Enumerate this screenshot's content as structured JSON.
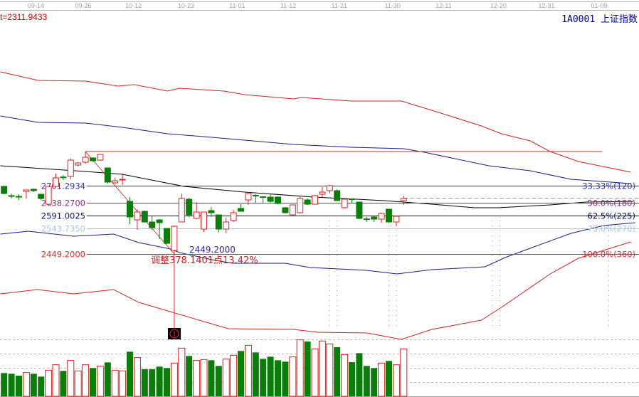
{
  "header": {
    "indicator_readout": "t=2311.9433",
    "symbol": "1A0001",
    "name": "上证指数"
  },
  "colors": {
    "up": "#d81e1e",
    "down": "#0a7d0a",
    "ma": "#000000",
    "band_outer": "#d42020",
    "band_inner": "#1a1a8c",
    "axis_text": "#a0a0a0"
  },
  "chart_data": {
    "type": "candlestick",
    "grid": false,
    "x_ticks": [
      {
        "label": "09-14",
        "index": 4.3
      },
      {
        "label": "09-26",
        "index": 10.7
      },
      {
        "label": "10-12",
        "index": 17.5
      },
      {
        "label": "10-23",
        "index": 24.6
      },
      {
        "label": "11-01",
        "index": 31.5
      },
      {
        "label": "11-12",
        "index": 38.4
      },
      {
        "label": "11-21",
        "index": 45.3
      },
      {
        "label": "11-30",
        "index": 52.5
      },
      {
        "label": "12-11",
        "index": 59.4
      },
      {
        "label": "12-20",
        "index": 66.8
      },
      {
        "label": "12-31",
        "index": 73.3
      },
      {
        "label": "01-09",
        "index": 80.4
      }
    ],
    "ohlc_columns": [
      "open",
      "high",
      "low",
      "close"
    ],
    "ohlc": [
      [
        2698.7,
        2701.3,
        2669.8,
        2672.4
      ],
      [
        2664.5,
        2672.4,
        2654.0,
        2663.0
      ],
      [
        2661.9,
        2669.8,
        2648.8,
        2660.5
      ],
      [
        2680.3,
        2685.5,
        2654.0,
        2685.5
      ],
      [
        2688.2,
        2690.8,
        2677.7,
        2682.9
      ],
      [
        2669.8,
        2669.8,
        2648.8,
        2654.0
      ],
      [
        2633.0,
        2701.3,
        2630.4,
        2698.7
      ],
      [
        2698.7,
        2745.9,
        2696.0,
        2730.2
      ],
      [
        2733.5,
        2740.7,
        2722.3,
        2732.8
      ],
      [
        2735.4,
        2801.1,
        2724.9,
        2795.8
      ],
      [
        2777.5,
        2788.0,
        2772.0,
        2785.3
      ],
      [
        2788.0,
        2827.3,
        2782.7,
        2806.3
      ],
      [
        2803.7,
        2806.3,
        2790.6,
        2793.2
      ],
      [
        2795.8,
        2816.8,
        2793.2,
        2816.8
      ],
      [
        2766.9,
        2766.9,
        2709.2,
        2714.4
      ],
      [
        2711.8,
        2730.2,
        2709.2,
        2719.7
      ],
      [
        2723.5,
        2745.9,
        2703.9,
        2724.9
      ],
      [
        2643.5,
        2659.3,
        2559.5,
        2585.8
      ],
      [
        2575.2,
        2614.6,
        2538.5,
        2604.1
      ],
      [
        2606.8,
        2609.4,
        2564.7,
        2567.4
      ],
      [
        2567.4,
        2591.0,
        2538.5,
        2546.4
      ],
      [
        2575.2,
        2577.9,
        2504.3,
        2564.7
      ],
      [
        2543.7,
        2543.7,
        2486.0,
        2488.6
      ],
      [
        2462.3,
        2554.2,
        2449.2,
        2551.6
      ],
      [
        2567.4,
        2672.4,
        2567.4,
        2654.0
      ],
      [
        2651.4,
        2656.7,
        2585.8,
        2593.6
      ],
      [
        2580.5,
        2640.9,
        2577.9,
        2604.1
      ],
      [
        2541.1,
        2604.1,
        2530.6,
        2604.1
      ],
      [
        2609.4,
        2622.5,
        2585.8,
        2601.5
      ],
      [
        2593.6,
        2593.6,
        2528.0,
        2541.1
      ],
      [
        2541.1,
        2583.1,
        2525.4,
        2567.4
      ],
      [
        2572.6,
        2612.0,
        2567.4,
        2601.5
      ],
      [
        2617.3,
        2633.0,
        2606.8,
        2606.8
      ],
      [
        2648.8,
        2672.4,
        2630.4,
        2672.4
      ],
      [
        2665.8,
        2669.8,
        2638.3,
        2664.5
      ],
      [
        2660.6,
        2661.9,
        2638.3,
        2659.3
      ],
      [
        2659.3,
        2669.8,
        2638.3,
        2643.5
      ],
      [
        2659.3,
        2661.9,
        2633.0,
        2635.6
      ],
      [
        2619.9,
        2622.5,
        2598.9,
        2601.5
      ],
      [
        2593.6,
        2630.4,
        2591.0,
        2630.4
      ],
      [
        2601.5,
        2664.5,
        2598.9,
        2654.0
      ],
      [
        2648.8,
        2654.0,
        2630.4,
        2633.0
      ],
      [
        2633.0,
        2667.2,
        2633.0,
        2664.5
      ],
      [
        2669.8,
        2696.0,
        2659.3,
        2677.7
      ],
      [
        2682.9,
        2703.9,
        2672.4,
        2701.3
      ],
      [
        2682.9,
        2688.2,
        2646.2,
        2646.2
      ],
      [
        2619.9,
        2651.4,
        2617.3,
        2651.4
      ],
      [
        2652.7,
        2654.0,
        2635.6,
        2651.4
      ],
      [
        2640.9,
        2640.9,
        2577.9,
        2580.5
      ],
      [
        2578.9,
        2585.8,
        2567.4,
        2577.9
      ],
      [
        2585.8,
        2591.0,
        2567.4,
        2577.9
      ],
      [
        2577.9,
        2601.5,
        2564.7,
        2598.9
      ],
      [
        2614.6,
        2614.6,
        2564.7,
        2567.4
      ],
      [
        2567.4,
        2588.4,
        2551.6,
        2588.4
      ],
      [
        2646.2,
        2664.5,
        2630.4,
        2654.0
      ]
    ],
    "volume_relative": [
      98,
      95,
      87,
      100,
      95,
      83,
      110,
      133,
      107,
      151,
      107,
      133,
      119,
      127,
      143,
      110,
      107,
      188,
      163,
      114,
      114,
      125,
      119,
      140,
      203,
      170,
      151,
      155,
      152,
      128,
      157,
      173,
      191,
      215,
      185,
      158,
      167,
      152,
      146,
      166,
      238,
      231,
      200,
      233,
      221,
      207,
      176,
      144,
      182,
      128,
      119,
      140,
      149,
      133,
      200
    ],
    "lines": {
      "upper_outer": [
        [
          -0.5,
          3121.5
        ],
        [
          4.6,
          3089.9
        ],
        [
          11.0,
          3087.3
        ],
        [
          15.4,
          3068.9
        ],
        [
          17.6,
          3074.2
        ],
        [
          22.1,
          3050.6
        ],
        [
          23.7,
          3061.1
        ],
        [
          29.7,
          3050.6
        ],
        [
          32.5,
          3037.4
        ],
        [
          39.1,
          3021.7
        ],
        [
          40.2,
          3026.9
        ],
        [
          46.9,
          3013.8
        ],
        [
          53.7,
          3013.8
        ],
        [
          58.4,
          2974.4
        ],
        [
          64.5,
          2921.9
        ],
        [
          67.2,
          2893.0
        ],
        [
          71.1,
          2866.7
        ],
        [
          73.8,
          2827.3
        ],
        [
          77.6,
          2790.6
        ],
        [
          84.7,
          2751.2
        ]
      ],
      "upper_inner": [
        [
          -0.5,
          2958.6
        ],
        [
          4.6,
          2935.0
        ],
        [
          11.0,
          2932.4
        ],
        [
          16.0,
          2916.6
        ],
        [
          22.1,
          2893.0
        ],
        [
          28.1,
          2879.9
        ],
        [
          32.5,
          2869.4
        ],
        [
          39.1,
          2853.6
        ],
        [
          46.9,
          2843.1
        ],
        [
          54.0,
          2837.8
        ],
        [
          56.8,
          2824.7
        ],
        [
          65.5,
          2774.8
        ],
        [
          71.1,
          2756.4
        ],
        [
          76.6,
          2724.9
        ],
        [
          84.7,
          2709.2
        ]
      ],
      "moving_average": [
        [
          -0.5,
          2774.8
        ],
        [
          11.0,
          2753.8
        ],
        [
          16.0,
          2743.3
        ],
        [
          24.3,
          2698.7
        ],
        [
          32.5,
          2677.7
        ],
        [
          41.8,
          2659.3
        ],
        [
          51.4,
          2646.2
        ],
        [
          57.8,
          2633.0
        ],
        [
          63.6,
          2619.9
        ],
        [
          66.8,
          2619.9
        ],
        [
          73.8,
          2630.4
        ],
        [
          78.6,
          2640.9
        ],
        [
          85.0,
          2643.5
        ]
      ],
      "lower_inner": [
        [
          -0.5,
          2522.7
        ],
        [
          3.3,
          2533.2
        ],
        [
          9.4,
          2514.9
        ],
        [
          14.8,
          2522.7
        ],
        [
          18.2,
          2491.2
        ],
        [
          22.5,
          2467.6
        ],
        [
          23.7,
          2454.5
        ],
        [
          28.1,
          2428.2
        ],
        [
          30.8,
          2415.1
        ],
        [
          38.0,
          2415.1
        ],
        [
          41.3,
          2399.3
        ],
        [
          49.0,
          2388.8
        ],
        [
          53.1,
          2375.7
        ],
        [
          57.8,
          2391.4
        ],
        [
          65.0,
          2401.9
        ],
        [
          67.7,
          2436.1
        ],
        [
          71.6,
          2475.5
        ],
        [
          76.6,
          2525.4
        ],
        [
          81.0,
          2554.2
        ],
        [
          85.3,
          2564.7
        ]
      ],
      "lower_outer": [
        [
          -0.5,
          2302.1
        ],
        [
          4.5,
          2317.9
        ],
        [
          9.4,
          2302.1
        ],
        [
          14.8,
          2317.9
        ],
        [
          18.2,
          2270.6
        ],
        [
          23.1,
          2231.2
        ],
        [
          30.3,
          2173.5
        ],
        [
          39.1,
          2170.8
        ],
        [
          42.4,
          2160.3
        ],
        [
          49.0,
          2157.7
        ],
        [
          53.7,
          2134.1
        ],
        [
          57.8,
          2170.8
        ],
        [
          64.5,
          2205.0
        ],
        [
          67.2,
          2252.2
        ],
        [
          73.8,
          2375.7
        ],
        [
          77.6,
          2433.4
        ],
        [
          84.7,
          2493.8
        ]
      ]
    },
    "fibonacci": {
      "high": 2827.34,
      "low": 2449.2,
      "levels": [
        {
          "price": 2701.2934,
          "price_label": "2701.2934",
          "ratio_label": "33.33%(120)",
          "color": "#3030b0"
        },
        {
          "price": 2638.27,
          "price_label": "2638.2700",
          "ratio_label": "50.0%(180)",
          "color": "#8a2a8a"
        },
        {
          "price": 2591.0025,
          "price_label": "2591.0025",
          "ratio_label": "62.5%(225)",
          "color": "#10105a"
        },
        {
          "price": 2543.735,
          "price_label": "2543.7350",
          "ratio_label": "75.0%(270)",
          "color": "#a9c6e3"
        },
        {
          "price": 2449.2,
          "price_label": "2449.2000",
          "ratio_label": "100.0%(360)",
          "color": "#e02828"
        }
      ],
      "low_annotation": "2449.2000",
      "adjustment_annotation": "调整378.1401点13.42%"
    },
    "current_price": 2654.0,
    "dotted_vertical_indices": [
      44,
      45,
      52,
      53,
      66,
      67,
      81.7
    ]
  }
}
